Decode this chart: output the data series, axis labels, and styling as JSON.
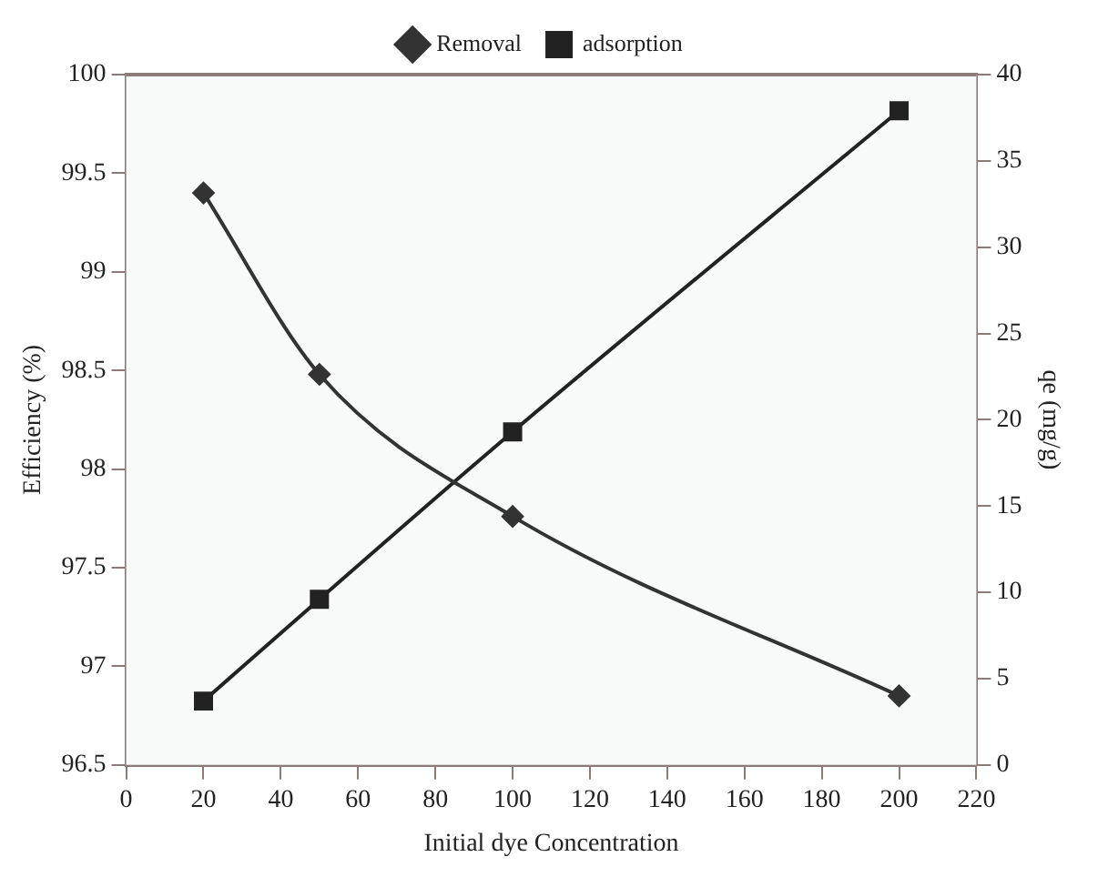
{
  "chart_data": {
    "type": "line",
    "xlabel": "Initial dye Concentration",
    "ylabel": "Efficiency (%)",
    "y2label": "qe (mg/g)",
    "x": [
      20,
      50,
      100,
      200
    ],
    "series": [
      {
        "name": "Removal",
        "color": "#333333",
        "values": [
          99.4,
          98.48,
          97.76,
          96.85
        ],
        "marker": "diamond"
      },
      {
        "name": "adsorption",
        "color": "#222222",
        "values": [
          3.7,
          9.6,
          19.3,
          37.9
        ],
        "axis": "y2",
        "marker": "square"
      }
    ],
    "xlim": [
      0,
      220
    ],
    "xticks": [
      0,
      20,
      40,
      60,
      80,
      100,
      120,
      140,
      160,
      180,
      200,
      220
    ],
    "ylim": [
      96.5,
      100
    ],
    "yticks": [
      96.5,
      97,
      97.5,
      98,
      98.5,
      99,
      99.5,
      100
    ],
    "y2lim": [
      0,
      40
    ],
    "y2ticks": [
      0,
      5,
      10,
      15,
      20,
      25,
      30,
      35,
      40
    ],
    "legend": "top"
  }
}
